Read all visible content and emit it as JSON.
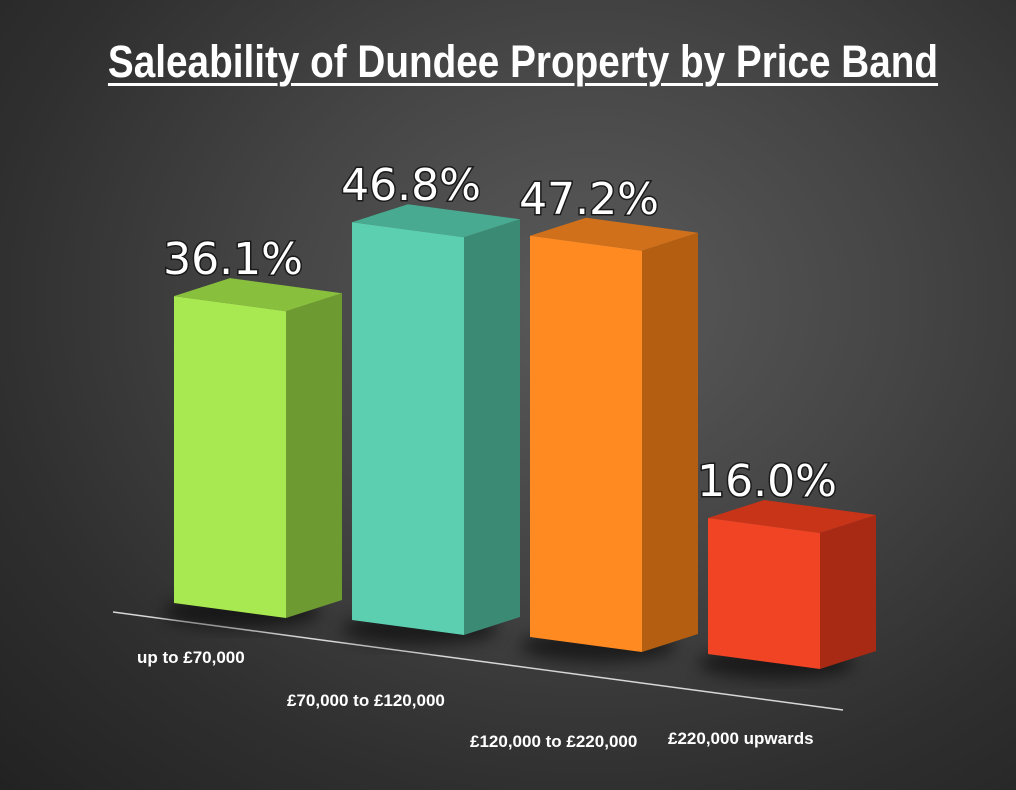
{
  "chart_data": {
    "type": "bar",
    "title": "Saleability of Dundee Property by Price Band",
    "categories": [
      "up to £70,000",
      "£70,000 to £120,000",
      "£120,000 to £220,000",
      "£220,000 upwards"
    ],
    "values": [
      36.1,
      46.8,
      47.2,
      16.0
    ],
    "value_labels": [
      "36.1%",
      "46.8%",
      "47.2%",
      "16.0%"
    ],
    "colors": [
      "#a8e850",
      "#5ccfb0",
      "#ff8a22",
      "#f04424"
    ],
    "side_colors": [
      "#6e9a32",
      "#3a8a74",
      "#b35e10",
      "#a82a14"
    ],
    "top_colors": [
      "#88c03e",
      "#48aa90",
      "#d0701a",
      "#c83418"
    ],
    "xlabel": "",
    "ylabel": "",
    "ylim": [
      0,
      50
    ],
    "grid": false,
    "legend": "none",
    "style": "3d"
  }
}
